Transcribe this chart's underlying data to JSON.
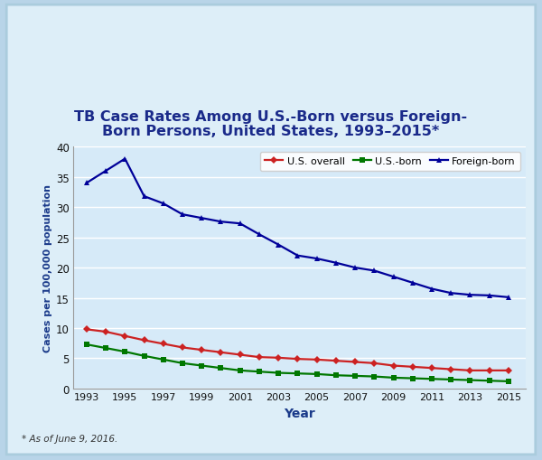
{
  "title_line1": "TB Case Rates Among U.S.-Born versus Foreign-",
  "title_line2": "Born Persons, United States, 1993–2015*",
  "xlabel": "Year",
  "ylabel": "Cases per 100,000 population",
  "footnote": "* As of June 9, 2016.",
  "years": [
    1993,
    1994,
    1995,
    1996,
    1997,
    1998,
    1999,
    2000,
    2001,
    2002,
    2003,
    2004,
    2005,
    2006,
    2007,
    2008,
    2009,
    2010,
    2011,
    2012,
    2013,
    2014,
    2015
  ],
  "us_overall": [
    9.8,
    9.4,
    8.7,
    8.0,
    7.4,
    6.8,
    6.4,
    6.0,
    5.6,
    5.2,
    5.1,
    4.9,
    4.8,
    4.6,
    4.4,
    4.2,
    3.8,
    3.6,
    3.4,
    3.2,
    3.0,
    3.0,
    3.0
  ],
  "us_born": [
    7.3,
    6.7,
    6.1,
    5.4,
    4.8,
    4.2,
    3.8,
    3.4,
    3.0,
    2.8,
    2.6,
    2.5,
    2.4,
    2.2,
    2.1,
    2.0,
    1.8,
    1.7,
    1.6,
    1.5,
    1.4,
    1.3,
    1.2
  ],
  "foreign_born": [
    34.0,
    36.0,
    38.0,
    31.8,
    30.6,
    28.8,
    28.2,
    27.6,
    27.3,
    25.5,
    23.8,
    22.0,
    21.5,
    20.8,
    20.0,
    19.5,
    18.5,
    17.5,
    16.5,
    15.8,
    15.5,
    15.4,
    15.1
  ],
  "color_overall": "#cc2222",
  "color_usborn": "#007700",
  "color_foreign": "#000099",
  "bg_card": "#ddeef8",
  "bg_plot": "#d6eaf8",
  "ylim": [
    0,
    40
  ],
  "yticks": [
    0,
    5,
    10,
    15,
    20,
    25,
    30,
    35,
    40
  ],
  "xtick_labels": [
    "1993",
    "1995",
    "1997",
    "1999",
    "2001",
    "2003",
    "2005",
    "2007",
    "2009",
    "2011",
    "2013",
    "2015"
  ],
  "xtick_positions": [
    1993,
    1995,
    1997,
    1999,
    2001,
    2003,
    2005,
    2007,
    2009,
    2011,
    2013,
    2015
  ]
}
